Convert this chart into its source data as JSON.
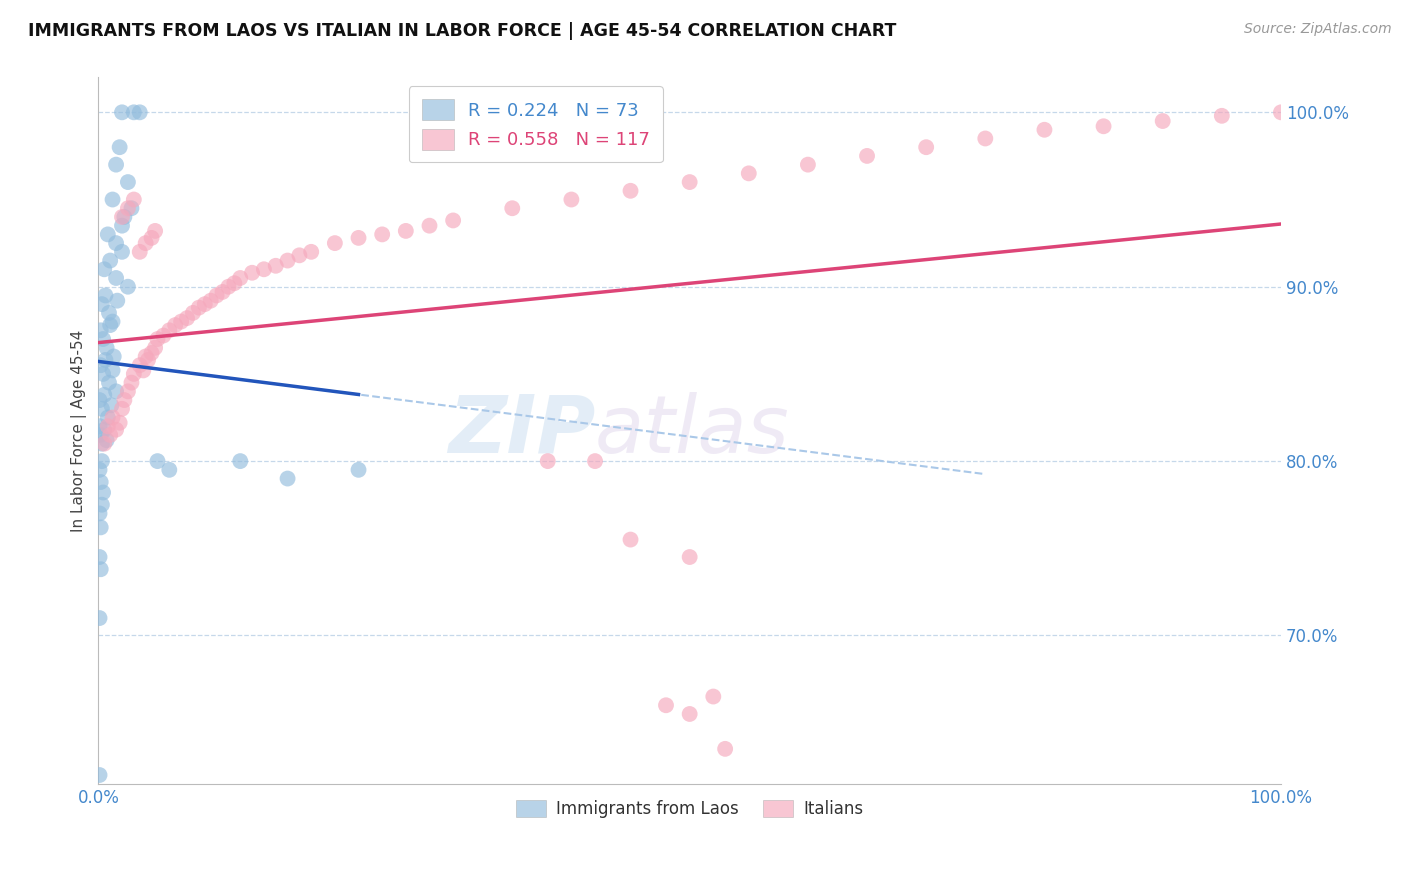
{
  "title": "IMMIGRANTS FROM LAOS VS ITALIAN IN LABOR FORCE | AGE 45-54 CORRELATION CHART",
  "source": "Source: ZipAtlas.com",
  "ylabel": "In Labor Force | Age 45-54",
  "xlim": [
    0.0,
    1.0
  ],
  "ylim": [
    0.615,
    1.02
  ],
  "yticks": [
    0.7,
    0.8,
    0.9,
    1.0
  ],
  "ytick_labels": [
    "70.0%",
    "80.0%",
    "90.0%",
    "100.0%"
  ],
  "xtick_labels": [
    "0.0%",
    "100.0%"
  ],
  "legend_blue_R": "0.224",
  "legend_blue_N": "73",
  "legend_pink_R": "0.558",
  "legend_pink_N": "117",
  "watermark_zip": "ZIP",
  "watermark_atlas": "atlas",
  "blue_color": "#92bcdd",
  "pink_color": "#f5a8bc",
  "blue_line_color": "#2255bb",
  "pink_line_color": "#dd4477",
  "diagonal_color": "#aac8e8",
  "blue_scatter_x": [
    0.02,
    0.03,
    0.035,
    0.015,
    0.025,
    0.018,
    0.012,
    0.022,
    0.028,
    0.008,
    0.015,
    0.02,
    0.005,
    0.01,
    0.015,
    0.02,
    0.025,
    0.003,
    0.006,
    0.009,
    0.012,
    0.016,
    0.002,
    0.004,
    0.007,
    0.01,
    0.013,
    0.002,
    0.004,
    0.006,
    0.009,
    0.012,
    0.015,
    0.001,
    0.003,
    0.005,
    0.008,
    0.011,
    0.001,
    0.002,
    0.003,
    0.005,
    0.007,
    0.001,
    0.002,
    0.003,
    0.004,
    0.001,
    0.002,
    0.003,
    0.001,
    0.002,
    0.001,
    0.05,
    0.06,
    0.12,
    0.16,
    0.22,
    0.001
  ],
  "blue_scatter_y": [
    1.0,
    1.0,
    1.0,
    0.97,
    0.96,
    0.98,
    0.95,
    0.94,
    0.945,
    0.93,
    0.925,
    0.935,
    0.91,
    0.915,
    0.905,
    0.92,
    0.9,
    0.89,
    0.895,
    0.885,
    0.88,
    0.892,
    0.875,
    0.87,
    0.865,
    0.878,
    0.86,
    0.855,
    0.85,
    0.858,
    0.845,
    0.852,
    0.84,
    0.835,
    0.83,
    0.838,
    0.825,
    0.832,
    0.82,
    0.815,
    0.81,
    0.818,
    0.812,
    0.795,
    0.788,
    0.8,
    0.782,
    0.77,
    0.762,
    0.775,
    0.745,
    0.738,
    0.71,
    0.8,
    0.795,
    0.8,
    0.79,
    0.795,
    0.62
  ],
  "pink_scatter_x": [
    0.005,
    0.008,
    0.01,
    0.012,
    0.015,
    0.018,
    0.02,
    0.022,
    0.025,
    0.028,
    0.03,
    0.035,
    0.038,
    0.04,
    0.042,
    0.045,
    0.048,
    0.05,
    0.055,
    0.06,
    0.065,
    0.07,
    0.075,
    0.08,
    0.085,
    0.09,
    0.095,
    0.1,
    0.105,
    0.11,
    0.115,
    0.12,
    0.13,
    0.14,
    0.15,
    0.16,
    0.17,
    0.18,
    0.2,
    0.22,
    0.24,
    0.26,
    0.28,
    0.3,
    0.35,
    0.4,
    0.45,
    0.5,
    0.55,
    0.6,
    0.65,
    0.7,
    0.75,
    0.8,
    0.85,
    0.9,
    0.95,
    1.0,
    0.02,
    0.025,
    0.03,
    0.38,
    0.42,
    0.45,
    0.48,
    0.035,
    0.04,
    0.045,
    0.048,
    0.5,
    0.52,
    0.5,
    0.53
  ],
  "pink_scatter_y": [
    0.81,
    0.82,
    0.815,
    0.825,
    0.818,
    0.822,
    0.83,
    0.835,
    0.84,
    0.845,
    0.85,
    0.855,
    0.852,
    0.86,
    0.858,
    0.862,
    0.865,
    0.87,
    0.872,
    0.875,
    0.878,
    0.88,
    0.882,
    0.885,
    0.888,
    0.89,
    0.892,
    0.895,
    0.897,
    0.9,
    0.902,
    0.905,
    0.908,
    0.91,
    0.912,
    0.915,
    0.918,
    0.92,
    0.925,
    0.928,
    0.93,
    0.932,
    0.935,
    0.938,
    0.945,
    0.95,
    0.955,
    0.96,
    0.965,
    0.97,
    0.975,
    0.98,
    0.985,
    0.99,
    0.992,
    0.995,
    0.998,
    1.0,
    0.94,
    0.945,
    0.95,
    0.8,
    0.8,
    0.755,
    0.66,
    0.92,
    0.925,
    0.928,
    0.932,
    0.745,
    0.665,
    0.655,
    0.635
  ]
}
